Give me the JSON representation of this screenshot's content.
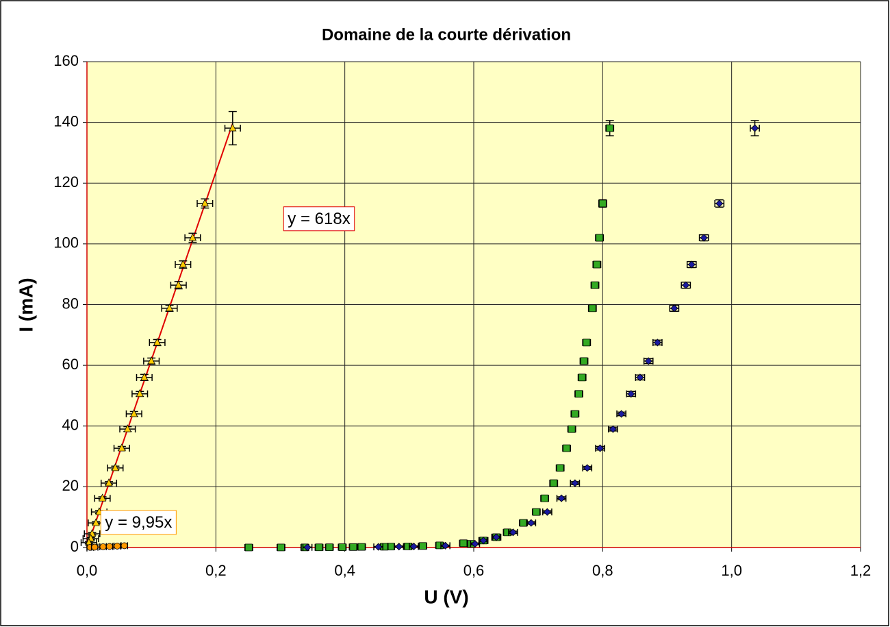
{
  "chart_data": {
    "type": "scatter",
    "title": "Domaine de la courte dérivation",
    "x_label": "U  (V)",
    "y_label": "I  (mA)",
    "xlim": [
      0,
      1.2
    ],
    "ylim": [
      0,
      160
    ],
    "xticks": [
      {
        "value": 0,
        "label": "0,0"
      },
      {
        "value": 0.2,
        "label": "0,2"
      },
      {
        "value": 0.4,
        "label": "0,4"
      },
      {
        "value": 0.6,
        "label": "0,6"
      },
      {
        "value": 0.8,
        "label": "0,8"
      },
      {
        "value": 1.0,
        "label": "1,0"
      },
      {
        "value": 1.2,
        "label": "1,2"
      }
    ],
    "yticks": [
      0,
      20,
      40,
      60,
      80,
      100,
      120,
      140,
      160
    ],
    "grid": true,
    "series": [
      {
        "marker": "triangle",
        "color": "#ffcc00",
        "x_error": 0.012,
        "x": [
          0.226,
          0.183,
          0.164,
          0.149,
          0.142,
          0.128,
          0.109,
          0.1,
          0.089,
          0.082,
          0.073,
          0.063,
          0.054,
          0.044,
          0.034,
          0.024,
          0.019,
          0.014,
          0.008,
          0.006,
          0.003
        ],
        "values": [
          138.1,
          113.3,
          102,
          93.2,
          86.4,
          78.8,
          67.5,
          61.4,
          56,
          50.6,
          44,
          39,
          32.7,
          26.2,
          21.2,
          16.2,
          11.7,
          8.1,
          4.5,
          2.9,
          1.6
        ],
        "y_errors": [
          5.5,
          1.5,
          1.5,
          1.2,
          1.2,
          1,
          1,
          1,
          1,
          0.8,
          0.8,
          0.8,
          0.6,
          0.6,
          0.5,
          0.5,
          0.5,
          0.4,
          0.4,
          0.4,
          0.4
        ],
        "trendline": {
          "slope": 618,
          "label": "y = 618x",
          "color": "#e00000"
        }
      },
      {
        "marker": "circle",
        "color": "#ff9900",
        "x_error": 0.005,
        "x": [
          0.005,
          0.012,
          0.025,
          0.035,
          0.047,
          0.058
        ],
        "values": [
          0.05,
          0.12,
          0.25,
          0.35,
          0.47,
          0.58
        ],
        "y_errors": [
          0,
          0,
          0,
          0,
          0,
          0
        ],
        "trendline": {
          "slope": 9.95,
          "label": "y = 9,95x",
          "color": "#ff9900"
        }
      },
      {
        "marker": "square",
        "color": "#33aa22",
        "x_error": 0.006,
        "x": [
          0.811,
          0.8,
          0.795,
          0.791,
          0.788,
          0.784,
          0.775,
          0.771,
          0.768,
          0.763,
          0.757,
          0.752,
          0.744,
          0.734,
          0.724,
          0.71,
          0.697,
          0.677,
          0.652,
          0.635,
          0.615,
          0.596,
          0.584,
          0.547,
          0.521,
          0.498,
          0.471,
          0.461,
          0.426,
          0.413,
          0.396,
          0.376,
          0.36,
          0.338,
          0.301,
          0.251
        ],
        "values": [
          138.1,
          113.3,
          102,
          93.2,
          86.4,
          78.8,
          67.5,
          61.4,
          56,
          50.6,
          44,
          39,
          32.7,
          26.2,
          21.2,
          16.2,
          11.7,
          8.1,
          5,
          3.4,
          2.3,
          1.2,
          1.4,
          0.7,
          0.5,
          0.35,
          0.3,
          0.25,
          0.2,
          0.15,
          0.1,
          0.08,
          0.06,
          0.04,
          0.02,
          0.01
        ],
        "y_errors": [
          2.5,
          1.2,
          1,
          1,
          1,
          1,
          0.8,
          0.8,
          0.8,
          0.8,
          0.6,
          0.6,
          0.6,
          0.5,
          0.5,
          0.5,
          0.4,
          0.4,
          0.4,
          0.3,
          0.3,
          0.3,
          0.3,
          0.2,
          0.2,
          0.2,
          0.2,
          0.2,
          0.1,
          0.1,
          0.1,
          0.1,
          0.1,
          0.1,
          0.1,
          0.1
        ]
      },
      {
        "marker": "diamond",
        "color": "#1a1aa0",
        "x_error": 0.007,
        "x": [
          1.036,
          0.981,
          0.957,
          0.938,
          0.929,
          0.911,
          0.885,
          0.871,
          0.858,
          0.844,
          0.829,
          0.816,
          0.796,
          0.776,
          0.757,
          0.736,
          0.714,
          0.689,
          0.661,
          0.635,
          0.615,
          0.602,
          0.556,
          0.507,
          0.484,
          0.452,
          0.342
        ],
        "values": [
          138.1,
          113.3,
          102,
          93.2,
          86.4,
          78.8,
          67.5,
          61.4,
          56,
          50.6,
          44,
          39,
          32.7,
          26.2,
          21.2,
          16.2,
          11.7,
          8.1,
          5,
          3.4,
          2.3,
          1.2,
          0.6,
          0.35,
          0.3,
          0.2,
          0.05
        ],
        "y_errors": [
          2.5,
          1.2,
          1,
          1,
          1,
          1,
          0.8,
          0.8,
          0.8,
          0.8,
          0.6,
          0.6,
          0.6,
          0.5,
          0.5,
          0.5,
          0.4,
          0.4,
          0.4,
          0.3,
          0.3,
          0.3,
          0.2,
          0.2,
          0.2,
          0.1,
          0.1
        ]
      }
    ]
  }
}
